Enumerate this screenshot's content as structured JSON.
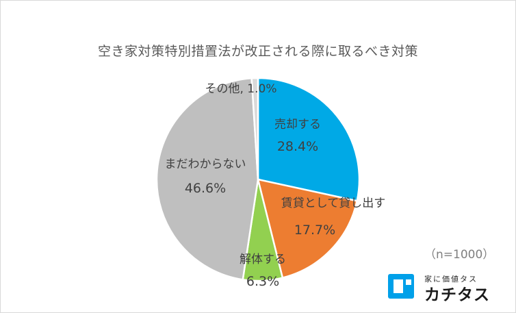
{
  "chart_data": {
    "type": "pie",
    "title": "空き家対策特別措置法が改正される際に取るべき対策",
    "slices": [
      {
        "label": "売却する",
        "value": 28.4,
        "value_label": "28.4%",
        "color": "#00a9e6"
      },
      {
        "label": "賃貸として貸し出す",
        "value": 17.7,
        "value_label": "17.7%",
        "color": "#ed7d31"
      },
      {
        "label": "解体する",
        "value": 6.3,
        "value_label": "6.3%",
        "color": "#92d050"
      },
      {
        "label": "まだわからない",
        "value": 46.6,
        "value_label": "46.6%",
        "color": "#bfbfbf"
      },
      {
        "label": "その他",
        "value": 1.0,
        "value_label": "1.0%",
        "color": "#d9d9d9",
        "combined_label": "その他, 1.0%"
      }
    ],
    "start_angle_deg": 0,
    "direction": "clockwise"
  },
  "note": "（n=1000）",
  "logo": {
    "tagline": "家に価値タス",
    "name": "カチタス",
    "color": "#00a0e9",
    "icon": "kachitas-logo-icon"
  }
}
